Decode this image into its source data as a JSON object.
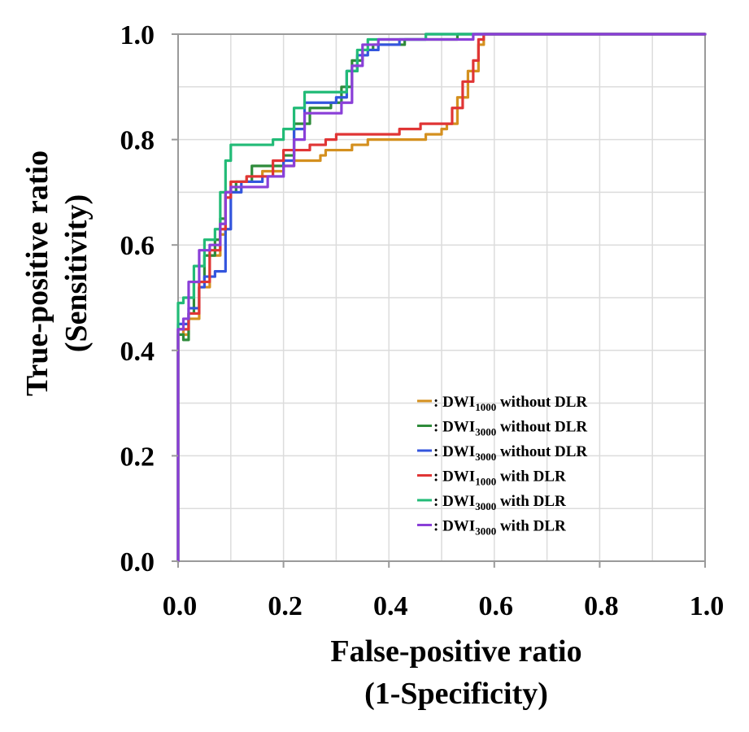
{
  "chart_data": {
    "type": "line",
    "title": "",
    "xlabel_line1": "False-positive ratio",
    "xlabel_line2": "(1-Specificity)",
    "ylabel_line1": "True-positive ratio",
    "ylabel_line2": "(Sensitivity)",
    "xlim": [
      0,
      1
    ],
    "ylim": [
      0,
      1
    ],
    "xticks": [
      0,
      0.2,
      0.4,
      0.6,
      0.8,
      1.0
    ],
    "yticks": [
      0,
      0.2,
      0.4,
      0.6,
      0.8,
      1.0
    ],
    "xtick_labels": [
      "0.0",
      "0.2",
      "0.4",
      "0.6",
      "0.8",
      "1.0"
    ],
    "ytick_labels": [
      "0.0",
      "0.2",
      "0.4",
      "0.6",
      "0.8",
      "1.0"
    ],
    "grid": true,
    "legend_position": "bottom-right",
    "series": [
      {
        "name": "DWI1000 without DLR",
        "legend_prefix": ": DWI",
        "legend_sub": "1000",
        "legend_suffix": " without  DLR",
        "color": "#d4901f",
        "points": [
          [
            0,
            0
          ],
          [
            0,
            0.44
          ],
          [
            0.01,
            0.43
          ],
          [
            0.02,
            0.46
          ],
          [
            0.04,
            0.52
          ],
          [
            0.06,
            0.58
          ],
          [
            0.08,
            0.62
          ],
          [
            0.09,
            0.7
          ],
          [
            0.1,
            0.72
          ],
          [
            0.13,
            0.73
          ],
          [
            0.16,
            0.74
          ],
          [
            0.2,
            0.75
          ],
          [
            0.22,
            0.76
          ],
          [
            0.27,
            0.77
          ],
          [
            0.28,
            0.78
          ],
          [
            0.33,
            0.79
          ],
          [
            0.36,
            0.8
          ],
          [
            0.46,
            0.8
          ],
          [
            0.47,
            0.81
          ],
          [
            0.5,
            0.82
          ],
          [
            0.51,
            0.83
          ],
          [
            0.53,
            0.88
          ],
          [
            0.55,
            0.93
          ],
          [
            0.57,
            0.98
          ],
          [
            0.58,
            1.0
          ],
          [
            1.0,
            1.0
          ]
        ]
      },
      {
        "name": "DWI3000 without DLR",
        "legend_prefix": ": DWI",
        "legend_sub": "3000",
        "legend_suffix": " without  DLR",
        "color": "#2e8b3a",
        "points": [
          [
            0,
            0
          ],
          [
            0,
            0.43
          ],
          [
            0.01,
            0.42
          ],
          [
            0.02,
            0.47
          ],
          [
            0.03,
            0.53
          ],
          [
            0.05,
            0.58
          ],
          [
            0.07,
            0.61
          ],
          [
            0.08,
            0.65
          ],
          [
            0.09,
            0.7
          ],
          [
            0.11,
            0.72
          ],
          [
            0.14,
            0.75
          ],
          [
            0.18,
            0.75
          ],
          [
            0.2,
            0.77
          ],
          [
            0.22,
            0.83
          ],
          [
            0.25,
            0.86
          ],
          [
            0.29,
            0.87
          ],
          [
            0.31,
            0.9
          ],
          [
            0.33,
            0.95
          ],
          [
            0.35,
            0.97
          ],
          [
            0.37,
            0.98
          ],
          [
            0.4,
            0.98
          ],
          [
            0.43,
            0.99
          ],
          [
            0.5,
            0.99
          ],
          [
            0.53,
            1.0
          ],
          [
            1.0,
            1.0
          ]
        ]
      },
      {
        "name": "DWI3000 without DLR",
        "legend_prefix": ": DWI",
        "legend_sub": "3000",
        "legend_suffix": " without  DLR",
        "color": "#3355dd",
        "points": [
          [
            0,
            0
          ],
          [
            0,
            0.45
          ],
          [
            0.01,
            0.45
          ],
          [
            0.02,
            0.48
          ],
          [
            0.04,
            0.52
          ],
          [
            0.05,
            0.54
          ],
          [
            0.07,
            0.55
          ],
          [
            0.09,
            0.63
          ],
          [
            0.1,
            0.7
          ],
          [
            0.12,
            0.72
          ],
          [
            0.16,
            0.73
          ],
          [
            0.2,
            0.76
          ],
          [
            0.22,
            0.82
          ],
          [
            0.24,
            0.87
          ],
          [
            0.27,
            0.87
          ],
          [
            0.3,
            0.88
          ],
          [
            0.32,
            0.93
          ],
          [
            0.34,
            0.96
          ],
          [
            0.36,
            0.97
          ],
          [
            0.38,
            0.98
          ],
          [
            0.42,
            0.99
          ],
          [
            0.46,
            0.99
          ],
          [
            0.47,
            1.0
          ],
          [
            1.0,
            1.0
          ]
        ]
      },
      {
        "name": "DWI1000 with DLR",
        "legend_prefix": ": DWI",
        "legend_sub": "1000",
        "legend_suffix": " with  DLR",
        "color": "#e03535",
        "points": [
          [
            0,
            0
          ],
          [
            0,
            0.44
          ],
          [
            0.01,
            0.44
          ],
          [
            0.02,
            0.47
          ],
          [
            0.04,
            0.53
          ],
          [
            0.06,
            0.59
          ],
          [
            0.08,
            0.63
          ],
          [
            0.09,
            0.69
          ],
          [
            0.1,
            0.72
          ],
          [
            0.13,
            0.73
          ],
          [
            0.18,
            0.76
          ],
          [
            0.2,
            0.78
          ],
          [
            0.23,
            0.78
          ],
          [
            0.25,
            0.79
          ],
          [
            0.28,
            0.8
          ],
          [
            0.3,
            0.81
          ],
          [
            0.4,
            0.81
          ],
          [
            0.42,
            0.82
          ],
          [
            0.46,
            0.83
          ],
          [
            0.5,
            0.83
          ],
          [
            0.52,
            0.86
          ],
          [
            0.54,
            0.91
          ],
          [
            0.56,
            0.95
          ],
          [
            0.57,
            0.99
          ],
          [
            0.58,
            1.0
          ],
          [
            1.0,
            1.0
          ]
        ]
      },
      {
        "name": "DWI3000 with DLR",
        "legend_prefix": ": DWI",
        "legend_sub": "3000",
        "legend_suffix": " with  DLR",
        "color": "#22bb77",
        "points": [
          [
            0,
            0
          ],
          [
            0,
            0.49
          ],
          [
            0.01,
            0.5
          ],
          [
            0.03,
            0.56
          ],
          [
            0.05,
            0.61
          ],
          [
            0.07,
            0.63
          ],
          [
            0.08,
            0.7
          ],
          [
            0.09,
            0.76
          ],
          [
            0.1,
            0.79
          ],
          [
            0.13,
            0.79
          ],
          [
            0.18,
            0.8
          ],
          [
            0.2,
            0.82
          ],
          [
            0.22,
            0.86
          ],
          [
            0.24,
            0.89
          ],
          [
            0.3,
            0.89
          ],
          [
            0.32,
            0.93
          ],
          [
            0.34,
            0.97
          ],
          [
            0.36,
            0.99
          ],
          [
            0.4,
            0.99
          ],
          [
            0.45,
            0.99
          ],
          [
            0.47,
            1.0
          ],
          [
            1.0,
            1.0
          ]
        ]
      },
      {
        "name": "DWI3000 with DLR",
        "legend_prefix": ": DWI",
        "legend_sub": "3000",
        "legend_suffix": " with  DLR",
        "color": "#8a3fd8",
        "points": [
          [
            0,
            0
          ],
          [
            0,
            0.44
          ],
          [
            0.01,
            0.46
          ],
          [
            0.02,
            0.53
          ],
          [
            0.04,
            0.59
          ],
          [
            0.06,
            0.6
          ],
          [
            0.08,
            0.64
          ],
          [
            0.09,
            0.7
          ],
          [
            0.1,
            0.71
          ],
          [
            0.12,
            0.71
          ],
          [
            0.17,
            0.73
          ],
          [
            0.2,
            0.75
          ],
          [
            0.22,
            0.8
          ],
          [
            0.24,
            0.85
          ],
          [
            0.28,
            0.85
          ],
          [
            0.31,
            0.87
          ],
          [
            0.33,
            0.94
          ],
          [
            0.35,
            0.98
          ],
          [
            0.38,
            0.99
          ],
          [
            0.52,
            0.99
          ],
          [
            0.56,
            1.0
          ],
          [
            1.0,
            1.0
          ]
        ]
      }
    ]
  },
  "colors": {
    "grid": "#dcdcdc",
    "frame": "#9a9a9a"
  }
}
